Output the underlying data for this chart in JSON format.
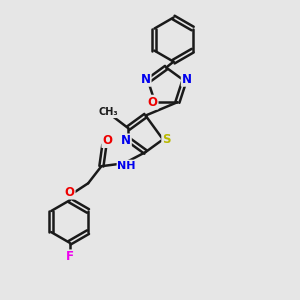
{
  "bg_color": "#e6e6e6",
  "bond_color": "#1a1a1a",
  "bond_width": 1.8,
  "atom_colors": {
    "N": "#0000ee",
    "O": "#ee0000",
    "S": "#b8b800",
    "F": "#ee00ee",
    "C": "#1a1a1a",
    "H": "#008080"
  },
  "font_size": 8.5
}
